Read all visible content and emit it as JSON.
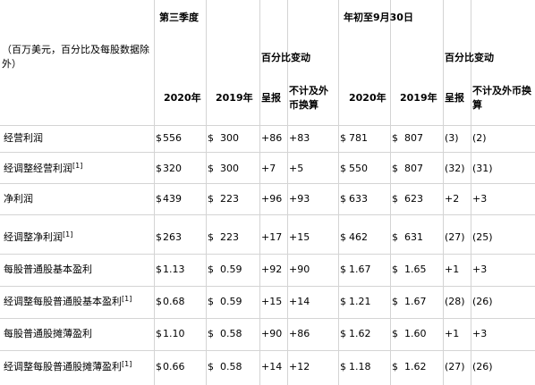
{
  "headers": {
    "q3": "第三季度",
    "ytd": "年初至9月30日",
    "units": "（百万美元，百分比及每股数据除外）",
    "pct_change_q3": "百分比变动",
    "pct_change_ytd": "百分比变动",
    "col_2020": "2020年",
    "col_2019": "2019年",
    "col_reported": "呈报",
    "col_ex_fx": "不计及外币换算",
    "col_2020_ytd": "2020年",
    "col_2019_ytd": "2019年",
    "col_reported_ytd": "呈报",
    "col_ex_fx_ytd": "不计及外币换算"
  },
  "rows": [
    {
      "label": "经营利润",
      "note": "",
      "q3_2020": "556",
      "q3_2019": "300",
      "q3_rep": "+86",
      "q3_fx": "+83",
      "ytd_2020": "781",
      "ytd_2019": "807",
      "ytd_rep": "(3)",
      "ytd_fx": "(2)"
    },
    {
      "label": "经调整经营利润",
      "note": "[1]",
      "q3_2020": "320",
      "q3_2019": "300",
      "q3_rep": "+7",
      "q3_fx": "+5",
      "ytd_2020": "550",
      "ytd_2019": "807",
      "ytd_rep": "(32)",
      "ytd_fx": "(31)"
    },
    {
      "label": "净利润",
      "note": "",
      "q3_2020": "439",
      "q3_2019": "223",
      "q3_rep": "+96",
      "q3_fx": "+93",
      "ytd_2020": "633",
      "ytd_2019": "623",
      "ytd_rep": "+2",
      "ytd_fx": "+3"
    },
    {
      "label": "经调整净利润",
      "note": "[1]",
      "q3_2020": "263",
      "q3_2019": "223",
      "q3_rep": "+17",
      "q3_fx": "+15",
      "ytd_2020": "462",
      "ytd_2019": "631",
      "ytd_rep": "(27)",
      "ytd_fx": "(25)"
    },
    {
      "label": "每股普通股基本盈利",
      "note": "",
      "q3_2020": "1.13",
      "q3_2019": "0.59",
      "q3_rep": "+92",
      "q3_fx": "+90",
      "ytd_2020": "1.67",
      "ytd_2019": "1.65",
      "ytd_rep": "+1",
      "ytd_fx": "+3"
    },
    {
      "label": "经调整每股普通股基本盈利",
      "note": "[1]",
      "q3_2020": "0.68",
      "q3_2019": "0.59",
      "q3_rep": "+15",
      "q3_fx": "+14",
      "ytd_2020": "1.21",
      "ytd_2019": "1.67",
      "ytd_rep": "(28)",
      "ytd_fx": "(26)"
    },
    {
      "label": "每股普通股摊薄盈利",
      "note": "",
      "q3_2020": "1.10",
      "q3_2019": "0.58",
      "q3_rep": "+90",
      "q3_fx": "+86",
      "ytd_2020": "1.62",
      "ytd_2019": "1.60",
      "ytd_rep": "+1",
      "ytd_fx": "+3"
    },
    {
      "label": "经调整每股普通股摊薄盈利",
      "note": "[1]",
      "q3_2020": "0.66",
      "q3_2019": "0.58",
      "q3_rep": "+14",
      "q3_fx": "+12",
      "ytd_2020": "1.18",
      "ytd_2019": "1.62",
      "ytd_rep": "(27)",
      "ytd_fx": "(26)"
    }
  ],
  "currency_symbol": "$"
}
